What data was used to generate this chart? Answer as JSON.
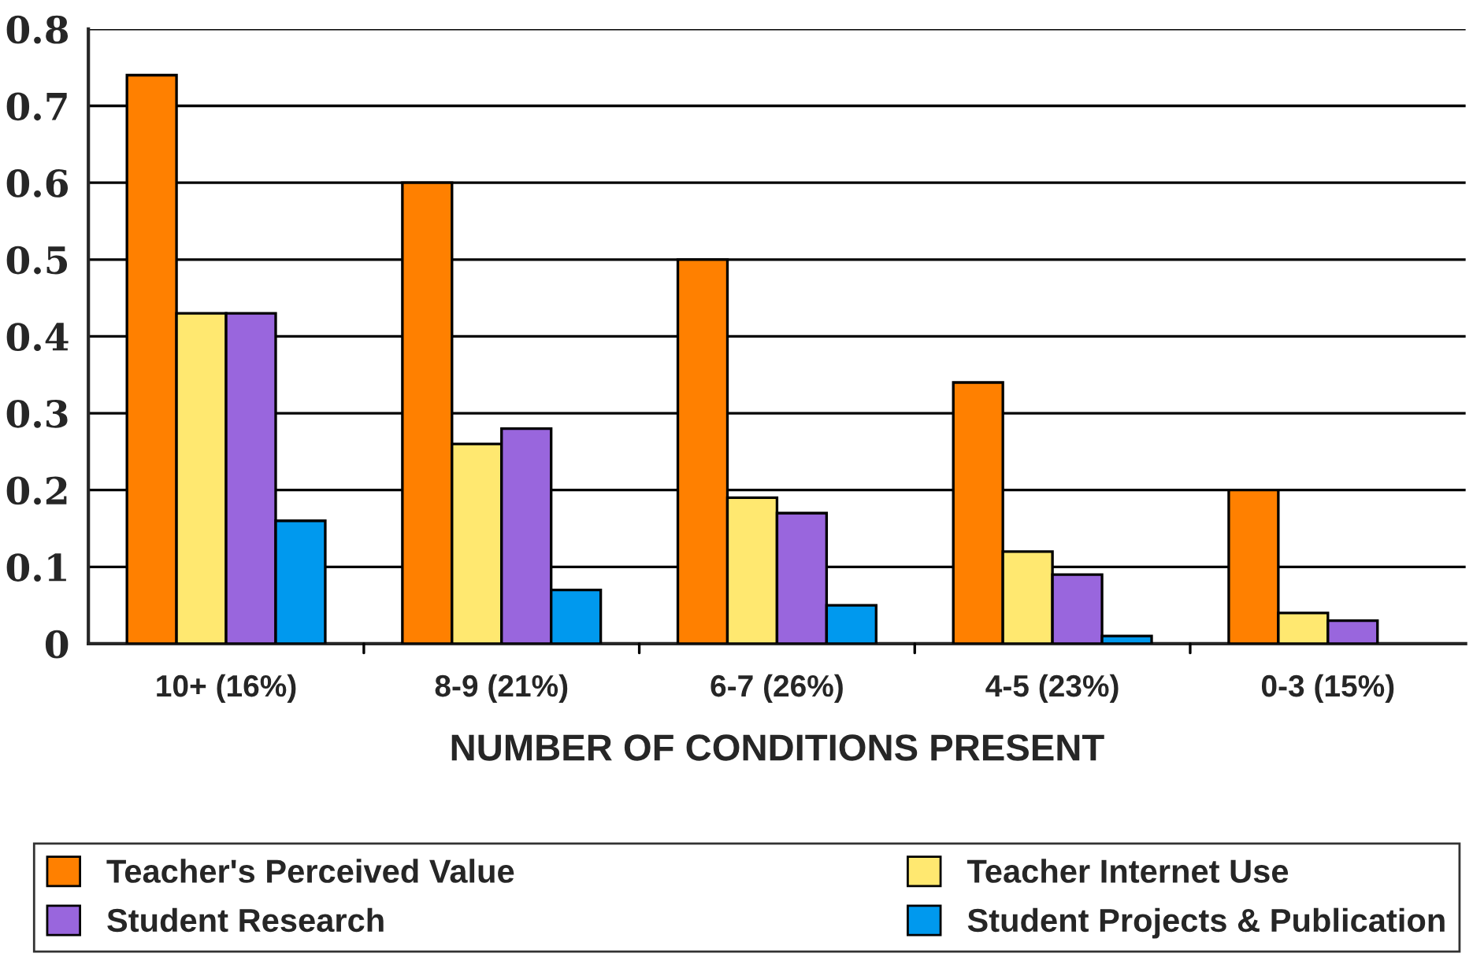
{
  "chart_data": {
    "type": "bar",
    "xlabel": "NUMBER OF CONDITIONS PRESENT",
    "categories": [
      "10+ (16%)",
      "8-9 (21%)",
      "6-7 (26%)",
      "4-5 (23%)",
      "0-3 (15%)"
    ],
    "series": [
      {
        "name": "Teacher's Perceived Value",
        "color": "#ff8000",
        "values": [
          0.74,
          0.6,
          0.5,
          0.34,
          0.2
        ]
      },
      {
        "name": "Teacher Internet Use",
        "color": "#ffe870",
        "values": [
          0.43,
          0.26,
          0.19,
          0.12,
          0.04
        ]
      },
      {
        "name": "Student Research",
        "color": "#9966dd",
        "values": [
          0.43,
          0.28,
          0.17,
          0.09,
          0.03
        ]
      },
      {
        "name": "Student Projects & Publication",
        "color": "#0099ee",
        "values": [
          0.16,
          0.07,
          0.05,
          0.01,
          null
        ]
      }
    ],
    "ylim": [
      0,
      0.8
    ],
    "yticks": [
      {
        "value": 0,
        "label": "0"
      },
      0.1,
      0.2,
      0.3,
      0.4,
      0.5,
      0.6,
      0.7,
      0.8
    ],
    "grid": "y",
    "legend": "bottom"
  }
}
